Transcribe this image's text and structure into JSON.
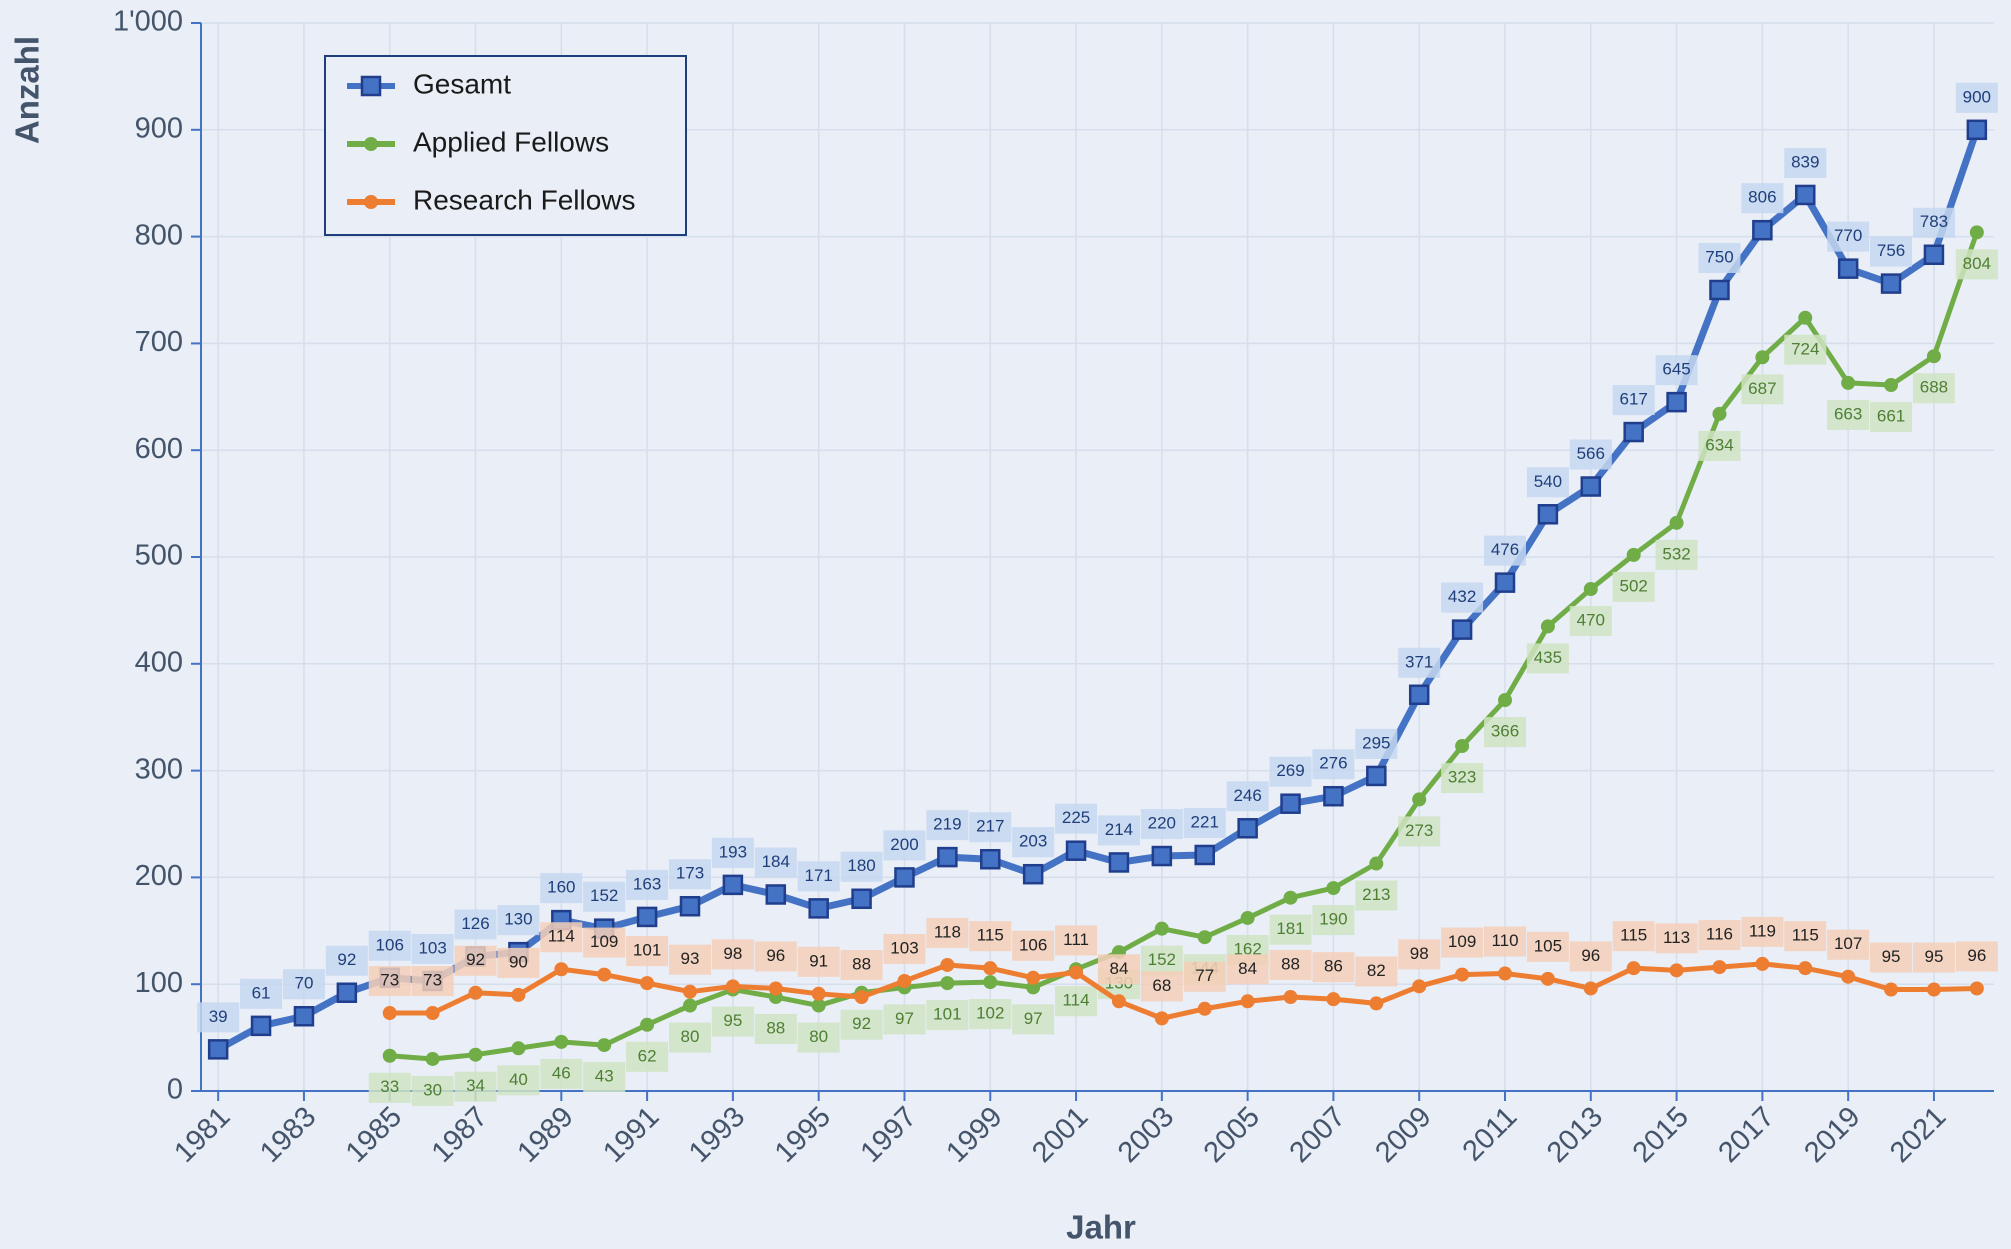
{
  "chart_data": {
    "type": "line",
    "x_label": "Jahr",
    "y_label": "Anzahl",
    "x": [
      1981,
      1982,
      1983,
      1984,
      1985,
      1986,
      1987,
      1988,
      1989,
      1990,
      1991,
      1992,
      1993,
      1994,
      1995,
      1996,
      1997,
      1998,
      1999,
      2000,
      2001,
      2002,
      2003,
      2004,
      2005,
      2006,
      2007,
      2008,
      2009,
      2010,
      2011,
      2012,
      2013,
      2014,
      2015,
      2016,
      2017,
      2018,
      2019,
      2020,
      2021,
      2022
    ],
    "series": [
      {
        "name": "Gesamt",
        "color": "#4472c4",
        "values": [
          39,
          61,
          70,
          92,
          106,
          103,
          126,
          130,
          160,
          152,
          163,
          173,
          193,
          184,
          171,
          180,
          200,
          219,
          217,
          203,
          225,
          214,
          220,
          221,
          246,
          269,
          276,
          295,
          371,
          432,
          476,
          540,
          566,
          617,
          645,
          750,
          806,
          839,
          770,
          756,
          783,
          900
        ]
      },
      {
        "name": "Applied Fellows",
        "color": "#70ad47",
        "values": [
          null,
          null,
          null,
          null,
          33,
          30,
          34,
          40,
          46,
          43,
          62,
          80,
          95,
          88,
          80,
          92,
          97,
          101,
          102,
          97,
          114,
          130,
          152,
          144,
          162,
          181,
          190,
          213,
          273,
          323,
          366,
          435,
          470,
          502,
          532,
          634,
          687,
          724,
          663,
          661,
          688,
          804
        ]
      },
      {
        "name": "Research Fellows",
        "color": "#ed7d31",
        "values": [
          null,
          null,
          null,
          null,
          73,
          73,
          92,
          90,
          114,
          109,
          101,
          93,
          98,
          96,
          91,
          88,
          103,
          118,
          115,
          106,
          111,
          84,
          68,
          77,
          84,
          88,
          86,
          82,
          98,
          109,
          110,
          105,
          96,
          115,
          113,
          116,
          119,
          115,
          107,
          95,
          95,
          96
        ]
      }
    ],
    "xlim": [
      1980.6,
      2022.4
    ],
    "xticks": [
      1981,
      1983,
      1985,
      1987,
      1989,
      1991,
      1993,
      1995,
      1997,
      1999,
      2001,
      2003,
      2005,
      2007,
      2009,
      2011,
      2013,
      2015,
      2017,
      2019,
      2021
    ],
    "ylim": [
      0,
      1000
    ],
    "yticks": [
      0,
      100,
      200,
      300,
      400,
      500,
      600,
      700,
      800,
      900,
      {
        "value": 1000,
        "label": "1'000"
      }
    ],
    "grid": true,
    "legend": "upper left"
  }
}
